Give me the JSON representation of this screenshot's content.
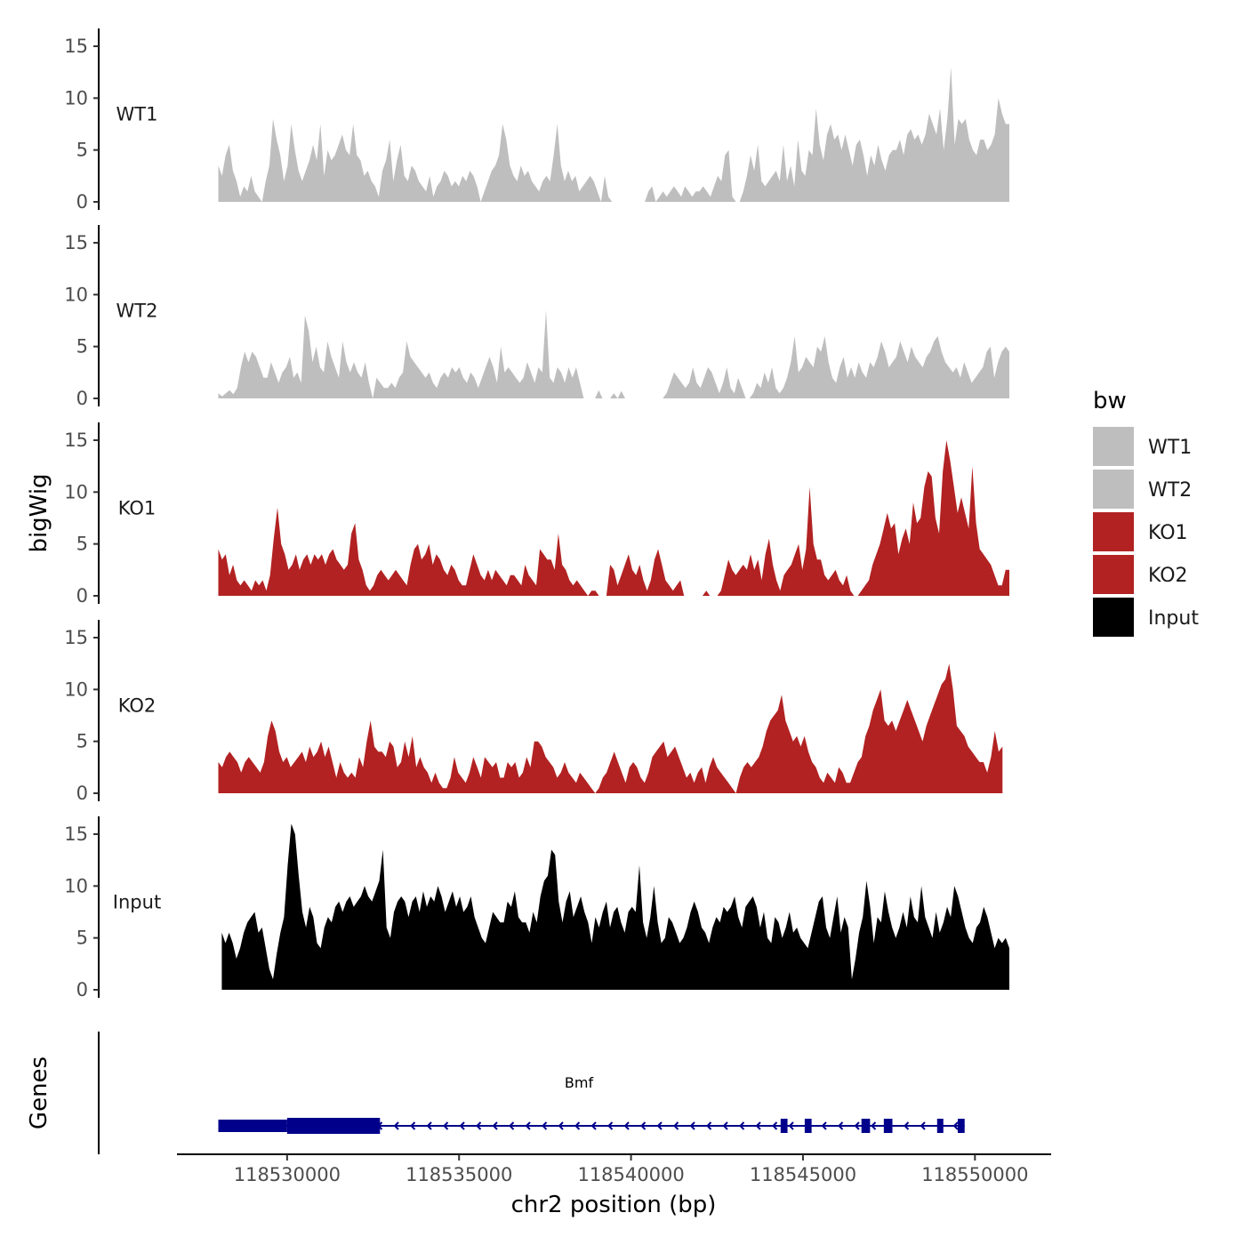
{
  "chart_data": {
    "type": "area",
    "title": "",
    "ylabel": "bigWig",
    "xlabel": "chr2 position (bp)",
    "xlim": [
      118526500,
      118551700
    ],
    "ylim": [
      0,
      16
    ],
    "x_ticks": [
      118530000,
      118535000,
      118540000,
      118545000,
      118550000
    ],
    "x_tick_labels": [
      "118530000",
      "118535000",
      "118540000",
      "118545000",
      "118550000"
    ],
    "y_ticks": [
      0,
      5,
      10,
      15
    ],
    "y_tick_labels": [
      "0",
      "5",
      "10",
      "15"
    ],
    "legend": {
      "title": "bw",
      "position": "right",
      "entries": [
        {
          "label": "WT1",
          "color": "#BEBEBE"
        },
        {
          "label": "WT2",
          "color": "#BEBEBE"
        },
        {
          "label": "KO1",
          "color": "#B22222"
        },
        {
          "label": "KO2",
          "color": "#B22222"
        },
        {
          "label": "Input",
          "color": "#000000"
        }
      ]
    },
    "series": [
      {
        "name": "WT1",
        "color": "#BEBEBE",
        "x_start": 118528000,
        "x_end": 118551000,
        "values": [
          3.5,
          2.5,
          4.5,
          5.5,
          3,
          2,
          0.5,
          1.5,
          1,
          2.5,
          1,
          0.5,
          0,
          2,
          3.5,
          8,
          6,
          4.5,
          2,
          3.5,
          7.5,
          5,
          3,
          2,
          3,
          4,
          5.5,
          4,
          7.5,
          2.5,
          5,
          4,
          4.5,
          5.5,
          6.5,
          5,
          4.5,
          7.5,
          4.5,
          4,
          2.5,
          3,
          2,
          1.5,
          0.5,
          3,
          4,
          6,
          2,
          4,
          5.5,
          2.5,
          2,
          3.5,
          3,
          2,
          1.5,
          1,
          2.5,
          0.5,
          1.5,
          2,
          3,
          2.5,
          1.5,
          2,
          1.5,
          2.5,
          2,
          3,
          2.5,
          1.5,
          0,
          1,
          2,
          3,
          3.5,
          4.5,
          7.5,
          6,
          3.5,
          2.5,
          2,
          3.5,
          2.5,
          3,
          2,
          1.5,
          1,
          2,
          2.5,
          2,
          4.5,
          7.5,
          3.5,
          2,
          3,
          2,
          2.5,
          1,
          1.5,
          2,
          2.5,
          2,
          1,
          0,
          2.5,
          0.5,
          0,
          0,
          0,
          0,
          0,
          0,
          0,
          0,
          0,
          0,
          1,
          1.5,
          0,
          0.5,
          1,
          0.5,
          1,
          1.5,
          1,
          0.5,
          1.5,
          1,
          0.5,
          1,
          1,
          1.5,
          1,
          0.5,
          1.5,
          2.5,
          2,
          4.5,
          5,
          0.5,
          0,
          0,
          1,
          2.5,
          4.5,
          3,
          5.5,
          2,
          1.5,
          2,
          2.5,
          3,
          2,
          5.5,
          2,
          3.5,
          1.5,
          6,
          3,
          2.5,
          5,
          4.5,
          9,
          5.5,
          4,
          6.5,
          7.5,
          6,
          6.5,
          5,
          6.5,
          5,
          3.5,
          5.5,
          6,
          4.5,
          2.5,
          4.5,
          3.5,
          5.5,
          4,
          3,
          4.5,
          5,
          5,
          6,
          4.5,
          6.5,
          7,
          6,
          6.5,
          5.5,
          6.5,
          8.5,
          7.5,
          6.5,
          9,
          5,
          8,
          13,
          5.5,
          8,
          7.5,
          8,
          6,
          5,
          4.5,
          6,
          6,
          5,
          5.5,
          6.5,
          10,
          8.5,
          7.5,
          7.5
        ]
      },
      {
        "name": "WT2",
        "color": "#BEBEBE",
        "x_start": 118528000,
        "x_end": 118551000,
        "values": [
          0.5,
          0.2,
          0.5,
          0.8,
          0.4,
          1,
          3,
          4.5,
          3.5,
          4.5,
          4,
          3,
          2,
          2,
          3.5,
          2.5,
          1.5,
          2.5,
          3,
          4,
          2,
          2.5,
          1.5,
          8,
          6.5,
          3.5,
          5,
          3,
          2.5,
          5.5,
          4,
          3,
          2,
          5.5,
          3.5,
          2.5,
          3.5,
          2.5,
          2,
          3.5,
          1.5,
          0,
          2,
          1.5,
          1,
          1,
          1.5,
          1,
          2,
          2.5,
          5.5,
          4,
          3.5,
          3,
          2.5,
          2,
          2.5,
          1.5,
          1,
          2,
          2.5,
          2,
          3,
          2.5,
          3,
          2,
          1.5,
          2.5,
          2,
          1,
          2,
          3,
          4,
          3,
          1.5,
          5,
          2.5,
          3,
          2.5,
          2,
          1.5,
          2,
          3.5,
          2.5,
          1.5,
          3,
          2.5,
          8.5,
          2,
          1.5,
          3,
          2.5,
          1.5,
          3,
          2,
          3,
          1.5,
          0,
          0,
          0,
          0,
          0.8,
          0,
          0,
          0,
          0.5,
          0,
          0.7,
          0,
          0,
          0,
          0,
          0,
          0,
          0,
          0,
          0,
          0,
          0,
          0.5,
          1.5,
          2.5,
          2,
          1.5,
          1,
          1.5,
          3,
          1.5,
          1,
          2,
          3,
          2.5,
          1.5,
          0.5,
          1.5,
          3,
          1,
          0.5,
          2,
          1,
          0,
          0,
          0.5,
          1.5,
          1,
          2.5,
          1.5,
          3,
          1,
          0.5,
          1,
          2,
          3.5,
          6,
          2.5,
          3,
          4,
          3.5,
          3,
          5,
          4.5,
          6,
          3.5,
          2,
          1.5,
          3,
          4,
          2,
          3,
          2,
          3.5,
          2.5,
          2,
          3.5,
          3,
          4,
          5.5,
          4.5,
          3,
          3.5,
          4,
          5.5,
          4.5,
          3.5,
          5,
          4,
          3.5,
          3,
          4,
          4.5,
          5.5,
          6,
          4.5,
          3.5,
          3,
          2.5,
          3,
          2,
          3.5,
          2.5,
          1.5,
          2,
          2.5,
          3,
          4.5,
          5,
          2,
          3.5,
          4.5,
          5,
          4.5
        ]
      },
      {
        "name": "KO1",
        "color": "#B22222",
        "x_start": 118528000,
        "x_end": 118551000,
        "values": [
          4.5,
          3.5,
          4,
          2,
          3,
          1.5,
          1,
          1.5,
          1,
          0.5,
          1.5,
          1,
          1.5,
          0.5,
          2,
          5.5,
          8.5,
          5,
          4,
          2.5,
          3,
          4,
          2.5,
          3.5,
          4,
          3,
          4,
          3.5,
          4,
          3,
          4,
          4.5,
          3.5,
          3,
          2.5,
          3,
          6,
          7,
          3.5,
          2.5,
          1,
          0.5,
          1,
          2,
          2.5,
          2,
          1.5,
          2,
          2.5,
          2,
          1.5,
          1,
          3,
          4.5,
          5,
          3.5,
          4,
          5,
          3,
          4,
          3.5,
          2.5,
          2,
          3,
          2.5,
          1.5,
          1,
          1,
          2.5,
          4,
          3,
          2,
          1.5,
          2.5,
          1.5,
          2.5,
          2,
          1.5,
          1,
          2,
          2,
          1.5,
          1,
          3,
          2,
          1.5,
          1,
          4.5,
          4,
          3.5,
          3.5,
          2.5,
          6,
          3,
          2.5,
          1.5,
          1,
          1.5,
          1,
          0.5,
          0,
          0.5,
          0.5,
          0,
          0,
          0,
          3,
          2.5,
          1,
          2,
          3,
          4,
          2.5,
          2,
          3,
          1.5,
          0.5,
          1.5,
          3.5,
          4.5,
          3,
          1.5,
          1,
          0.5,
          1,
          1.5,
          0,
          0,
          0,
          0,
          0,
          0,
          0.5,
          0,
          0,
          0,
          0.5,
          2,
          3.5,
          2.5,
          2,
          2.5,
          3,
          2.5,
          4,
          2.5,
          3.5,
          1.5,
          4,
          5.5,
          3,
          1.5,
          0.5,
          2,
          2.5,
          3,
          4,
          5,
          2.5,
          4.5,
          10.5,
          5,
          3.5,
          3.5,
          2,
          1.5,
          2,
          2.5,
          1.5,
          1,
          2,
          0.5,
          0,
          0,
          0.5,
          1,
          1.5,
          3,
          4,
          5,
          6.5,
          8,
          6.5,
          7,
          4,
          5.5,
          6.5,
          5,
          9,
          7,
          7.5,
          10.5,
          12,
          11.5,
          7.5,
          6,
          12,
          15,
          13,
          10.5,
          8,
          9.5,
          8,
          6.5,
          12.5,
          7,
          4.5,
          4,
          3.5,
          3,
          2,
          1,
          1,
          2.5,
          2.5
        ]
      },
      {
        "name": "KO2",
        "color": "#B22222",
        "x_start": 118528000,
        "x_end": 118550800,
        "values": [
          3,
          2.5,
          3.5,
          4,
          3.5,
          3,
          2,
          3,
          3.5,
          3,
          2.5,
          2,
          3,
          5.5,
          7,
          6,
          4,
          3,
          3.5,
          2.5,
          3,
          3.5,
          4,
          3,
          4.5,
          3.5,
          4,
          5,
          3.5,
          4.5,
          3,
          1.5,
          3,
          2,
          1.5,
          2,
          1.5,
          3.5,
          2.5,
          5,
          7,
          4.5,
          4,
          4,
          3.5,
          5,
          4.5,
          2.5,
          3,
          5,
          3.5,
          5.5,
          2.5,
          3.5,
          2.5,
          2,
          1,
          2,
          1,
          0.5,
          0.5,
          1.5,
          3.5,
          2,
          1.5,
          1,
          2,
          3.5,
          2.5,
          1.5,
          3.5,
          3,
          2.5,
          3,
          1.5,
          1.5,
          3,
          2.5,
          3,
          1.5,
          2,
          3.5,
          2.5,
          5,
          5,
          4.5,
          3.5,
          3,
          2.5,
          1.5,
          2,
          3,
          2,
          1.5,
          1,
          2,
          1.5,
          1,
          0.5,
          0,
          0.5,
          1.5,
          2,
          3,
          4,
          3,
          2,
          1,
          2.5,
          3,
          2.5,
          1.5,
          1,
          2,
          3.5,
          4,
          4.5,
          5,
          3.5,
          4,
          4.5,
          3.5,
          2.5,
          1.5,
          2,
          1,
          2,
          2.5,
          1,
          2.5,
          3.5,
          2.5,
          2,
          1.5,
          1,
          0.5,
          0,
          1.5,
          2.5,
          3,
          2.5,
          3,
          3.5,
          4.5,
          6,
          7,
          7.5,
          8,
          9.5,
          7,
          6,
          5,
          5.5,
          4.5,
          5.5,
          4,
          3,
          2.5,
          1.5,
          1,
          2,
          1.5,
          1,
          2.5,
          2,
          1,
          1,
          2,
          3,
          3.5,
          5.5,
          6.5,
          8,
          9,
          10,
          7,
          6.5,
          7,
          6,
          7,
          8,
          9,
          8,
          7,
          6,
          5,
          6.5,
          7.5,
          8.5,
          9.5,
          10.5,
          11,
          12.5,
          10,
          6.5,
          6,
          5.5,
          4.5,
          4,
          3.5,
          3,
          3,
          2,
          3.5,
          6,
          4,
          4.5
        ]
      },
      {
        "name": "Input",
        "color": "#000000",
        "x_start": 118528100,
        "x_end": 118551000,
        "values": [
          5.5,
          4.5,
          5.5,
          4.5,
          3,
          4,
          5.5,
          6.5,
          7,
          7.5,
          5.5,
          6,
          4,
          2,
          1,
          3.5,
          5.5,
          7,
          12,
          16,
          15,
          11,
          7.5,
          6,
          8,
          7,
          4.5,
          4,
          6,
          7,
          6.5,
          8,
          8.5,
          7.5,
          8.5,
          9,
          8,
          8.5,
          9,
          10,
          9,
          8.5,
          9.5,
          10.5,
          13.5,
          6,
          5,
          7.5,
          8.5,
          9,
          8.5,
          7,
          8.5,
          9,
          7.5,
          9.5,
          8,
          9,
          8.5,
          10,
          9,
          7.5,
          8.5,
          9.5,
          8,
          9,
          7.5,
          8,
          9,
          7,
          6,
          5,
          4.5,
          6,
          7.5,
          7,
          6.5,
          6.5,
          8.5,
          8,
          9.5,
          7,
          6.5,
          6.5,
          5.5,
          7.5,
          6.5,
          9,
          10.5,
          11,
          13.5,
          13,
          8.5,
          6.5,
          8.5,
          9.5,
          7,
          8,
          9,
          7.5,
          6.5,
          4.5,
          7,
          6,
          7.5,
          8.5,
          6,
          7.5,
          8,
          6.5,
          5.5,
          7.5,
          8,
          7.5,
          12,
          6.5,
          5,
          7,
          10,
          6.5,
          4.5,
          5,
          7,
          6.5,
          5.5,
          4.5,
          5,
          6,
          7.5,
          8.5,
          7.5,
          6,
          5.5,
          4.5,
          6,
          7,
          6.5,
          8,
          7.5,
          8,
          9,
          7,
          6,
          8,
          8.5,
          9,
          8,
          6,
          7.5,
          5,
          4.5,
          7,
          6.5,
          5,
          6,
          7.5,
          5.5,
          6,
          5,
          4.5,
          4,
          5.5,
          7,
          8.5,
          9,
          6,
          5,
          7,
          9,
          5.5,
          7,
          6,
          1,
          3,
          5.5,
          7,
          10.5,
          8,
          4.5,
          7,
          6.5,
          9.5,
          7.5,
          6,
          5,
          6,
          7.5,
          6,
          9,
          7,
          6.5,
          10,
          7,
          6,
          5,
          7.5,
          5.5,
          6.5,
          8,
          7,
          10,
          9,
          7.5,
          6,
          5,
          4.5,
          6,
          6.5,
          8,
          7,
          5.5,
          4,
          5,
          4.5,
          5,
          4
        ]
      }
    ]
  },
  "genes": {
    "axis_label": "Genes",
    "gene_name": "Bmf",
    "color": "#00008B",
    "strand": "-",
    "start": 118528000,
    "end": 118549700,
    "exons": [
      {
        "start": 118528000,
        "end": 118532700,
        "size": "large"
      },
      {
        "start": 118544350,
        "end": 118544550,
        "size": "small"
      },
      {
        "start": 118545050,
        "end": 118545250,
        "size": "small"
      },
      {
        "start": 118546700,
        "end": 118546950,
        "size": "small"
      },
      {
        "start": 118547350,
        "end": 118547600,
        "size": "small"
      },
      {
        "start": 118548900,
        "end": 118549050,
        "size": "small"
      },
      {
        "start": 118549500,
        "end": 118549700,
        "size": "small"
      }
    ]
  }
}
